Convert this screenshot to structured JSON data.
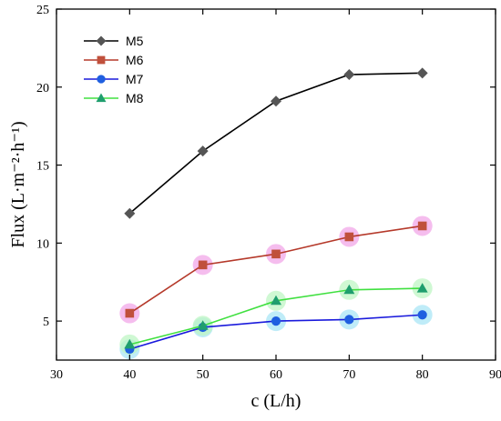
{
  "chart_data": {
    "type": "line",
    "xlabel": "c (L/h)",
    "ylabel": "Flux (L·m⁻²·h⁻¹)",
    "xlim": [
      30,
      90
    ],
    "ylim": [
      2.5,
      25
    ],
    "xticks": [
      30,
      40,
      50,
      60,
      70,
      80,
      90
    ],
    "yticks": [
      5,
      10,
      15,
      20,
      25
    ],
    "grid": false,
    "legend_position": "top-left",
    "x": [
      40,
      50,
      60,
      70,
      80
    ],
    "series": [
      {
        "name": "M5",
        "values": [
          11.9,
          15.9,
          19.1,
          20.8,
          20.9
        ],
        "color": "#000000",
        "marker_color": "#555555",
        "marker": "diamond",
        "glow": ""
      },
      {
        "name": "M6",
        "values": [
          5.5,
          8.6,
          9.3,
          10.4,
          11.1
        ],
        "color": "#b5392a",
        "marker_color": "#c0503c",
        "marker": "square",
        "glow": "#f2a7e8"
      },
      {
        "name": "M7",
        "values": [
          3.2,
          4.6,
          5.0,
          5.1,
          5.4
        ],
        "color": "#1a1adc",
        "marker_color": "#1f5fe0",
        "marker": "circle",
        "glow": "#a9e6f6"
      },
      {
        "name": "M8",
        "values": [
          3.5,
          4.7,
          6.3,
          7.0,
          7.1
        ],
        "color": "#40e040",
        "marker_color": "#1f9e6e",
        "marker": "triangle",
        "glow": "#bff5c4"
      }
    ]
  }
}
